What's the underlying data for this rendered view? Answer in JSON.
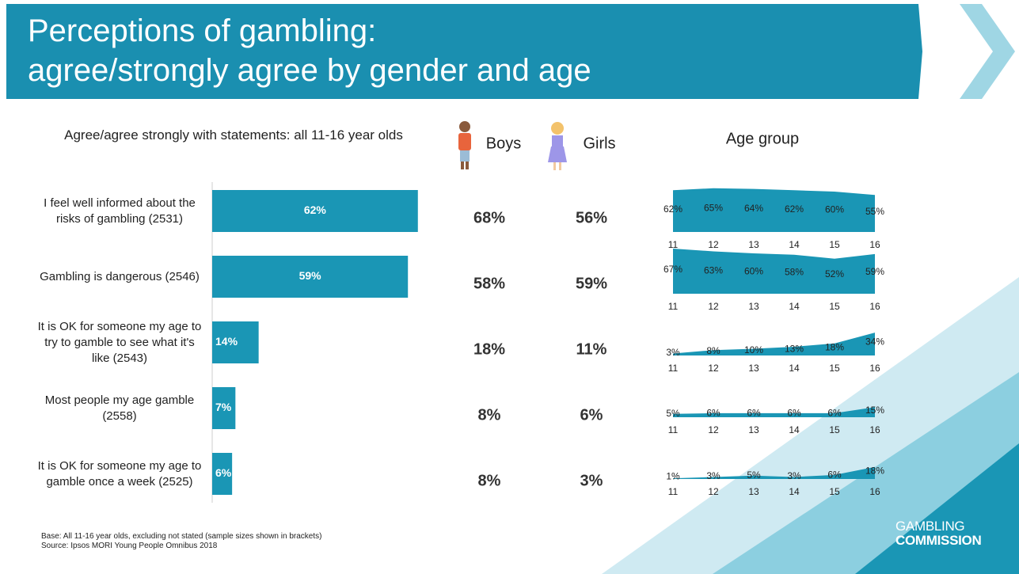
{
  "header": {
    "title": "Perceptions of gambling:\nagree/strongly agree by gender and age"
  },
  "chart_data": [
    {
      "type": "hbar",
      "title": "Agree/agree strongly with statements: all 11-16 year olds",
      "categories": [
        "I feel well informed about the risks of gambling (2531)",
        "Gambling is dangerous (2546)",
        "It is OK for someone my age to try to gamble to see what it's like (2543)",
        "Most people my age gamble (2558)",
        "It is OK for someone my age to gamble once a week (2525)"
      ],
      "values": [
        62,
        59,
        14,
        7,
        6
      ],
      "value_labels": [
        "62%",
        "59%",
        "14%",
        "7%",
        "6%"
      ],
      "color": "#1a96b5",
      "xlim": [
        0,
        100
      ]
    },
    {
      "type": "area",
      "title": "Age group",
      "x": [
        11,
        12,
        13,
        14,
        15,
        16
      ],
      "color": "#1a96b5",
      "ylim": [
        0,
        100
      ],
      "panels": [
        {
          "values": [
            62,
            65,
            64,
            62,
            60,
            55
          ],
          "value_labels": [
            "62%",
            "65%",
            "64%",
            "62%",
            "60%",
            "55%"
          ]
        },
        {
          "values": [
            67,
            63,
            60,
            58,
            52,
            59
          ],
          "value_labels": [
            "67%",
            "63%",
            "60%",
            "58%",
            "52%",
            "59%"
          ]
        },
        {
          "values": [
            3,
            8,
            10,
            13,
            18,
            34
          ],
          "value_labels": [
            "3%",
            "8%",
            "10%",
            "13%",
            "18%",
            "34%"
          ]
        },
        {
          "values": [
            5,
            6,
            6,
            6,
            6,
            15
          ],
          "value_labels": [
            "5%",
            "6%",
            "6%",
            "6%",
            "6%",
            "15%"
          ]
        },
        {
          "values": [
            1,
            3,
            5,
            3,
            6,
            18
          ],
          "value_labels": [
            "1%",
            "3%",
            "5%",
            "3%",
            "6%",
            "18%"
          ]
        }
      ]
    }
  ],
  "gender": {
    "headers": [
      "Boys",
      "Girls"
    ],
    "rows": [
      [
        "68%",
        "56%"
      ],
      [
        "58%",
        "59%"
      ],
      [
        "18%",
        "11%"
      ],
      [
        "8%",
        "6%"
      ],
      [
        "8%",
        "3%"
      ]
    ]
  },
  "footer": {
    "base": "Base: All 11-16 year olds, excluding not stated (sample sizes shown in brackets)",
    "source": "Source: Ipsos MORI Young People Omnibus 2018",
    "logo_line1": "GAMBLING",
    "logo_line2": "COMMISSION"
  }
}
